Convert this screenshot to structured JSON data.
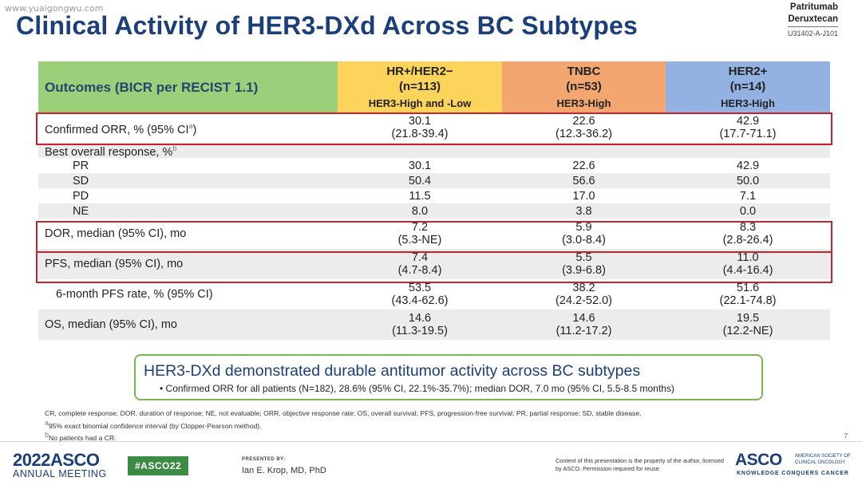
{
  "watermark": "www.yuaigongwu.com",
  "title": "Clinical Activity of HER3-DXd Across BC Subtypes",
  "drug": {
    "line1": "Patritumab",
    "line2": "Deruxtecan",
    "code": "U31402-A-J101"
  },
  "colors": {
    "title": "#1c3f7a",
    "col_outcomes": "#9ccf79",
    "col_hr": "#fcd35b",
    "col_tnbc": "#f4a670",
    "col_her2": "#94b2e1",
    "highlight": "#c8232c",
    "callout_border": "#78b754"
  },
  "table": {
    "header": {
      "outcomes": "Outcomes (BICR per RECIST 1.1)",
      "cols": [
        {
          "name": "HR+/HER2−",
          "n": "(n=113)",
          "sub": "HER3-High and -Low"
        },
        {
          "name": "TNBC",
          "n": "(n=53)",
          "sub": "HER3-High"
        },
        {
          "name": "HER2+",
          "n": "(n=14)",
          "sub": "HER3-High"
        }
      ]
    },
    "rows": {
      "orr": {
        "label": "Confirmed ORR, % (95% CI",
        "sup": "a",
        "label_end": ")",
        "v": [
          "30.1",
          "22.6",
          "42.9"
        ],
        "ci": [
          "(21.8-39.4)",
          "(12.3-36.2)",
          "(17.7-71.1)"
        ]
      },
      "bor": {
        "label": "Best overall response, %",
        "sup": "b"
      },
      "pr": {
        "label": "PR",
        "v": [
          "30.1",
          "22.6",
          "42.9"
        ]
      },
      "sd": {
        "label": "SD",
        "v": [
          "50.4",
          "56.6",
          "50.0"
        ]
      },
      "pd": {
        "label": "PD",
        "v": [
          "11.5",
          "17.0",
          "7.1"
        ]
      },
      "ne": {
        "label": "NE",
        "v": [
          "8.0",
          "3.8",
          "0.0"
        ]
      },
      "dor": {
        "label": "DOR, median (95% CI), mo",
        "v": [
          "7.2",
          "5.9",
          "8.3"
        ],
        "ci": [
          "(5.3-NE)",
          "(3.0-8.4)",
          "(2.8-26.4)"
        ]
      },
      "pfs": {
        "label": "PFS, median (95% CI), mo",
        "v": [
          "7.4",
          "5.5",
          "11.0"
        ],
        "ci": [
          "(4.7-8.4)",
          "(3.9-6.8)",
          "(4.4-16.4)"
        ]
      },
      "pfs6": {
        "label": "6-month PFS rate, % (95% CI)",
        "v": [
          "53.5",
          "38.2",
          "51.6"
        ],
        "ci": [
          "(43.4-62.6)",
          "(24.2-52.0)",
          "(22.1-74.8)"
        ]
      },
      "os": {
        "label": "OS, median (95% CI), mo",
        "v": [
          "14.6",
          "14.6",
          "19.5"
        ],
        "ci": [
          "(11.3-19.5)",
          "(11.2-17.2)",
          "(12.2-NE)"
        ]
      }
    }
  },
  "callout": {
    "title": "HER3-DXd demonstrated durable antitumor activity across BC subtypes",
    "bullet": "Confirmed ORR for all patients (N=182), 28.6% (95% CI, 22.1%-35.7%); median DOR, 7.0 mo (95% CI, 5.5-8.5 months)"
  },
  "footnotes": {
    "abbrev": "CR, complete response; DOR, duration of response; NE, not evaluable; ORR, objective response rate; OS, overall survival; PFS, progression-free survival; PR, partial response; SD, stable disease.",
    "a_mark": "a",
    "a": "95% exact binomial confidence interval (by Clopper-Pearson method).",
    "b_mark": "b",
    "b": "No patients had a CR."
  },
  "page_number": "7",
  "footer": {
    "year": "2022",
    "asco": "ASCO",
    "meeting": "ANNUAL MEETING",
    "hashtag": "#ASCO22",
    "presented_by": "PRESENTED BY:",
    "presenter": "Ian E. Krop, MD, PhD",
    "disclaimer": "Content of this presentation is the property of the author, licensed by ASCO. Permission required for reuse.",
    "society_logo": "ASCO",
    "society_name": "AMERICAN SOCIETY OF CLINICAL ONCOLOGY",
    "tagline": "KNOWLEDGE CONQUERS CANCER"
  }
}
